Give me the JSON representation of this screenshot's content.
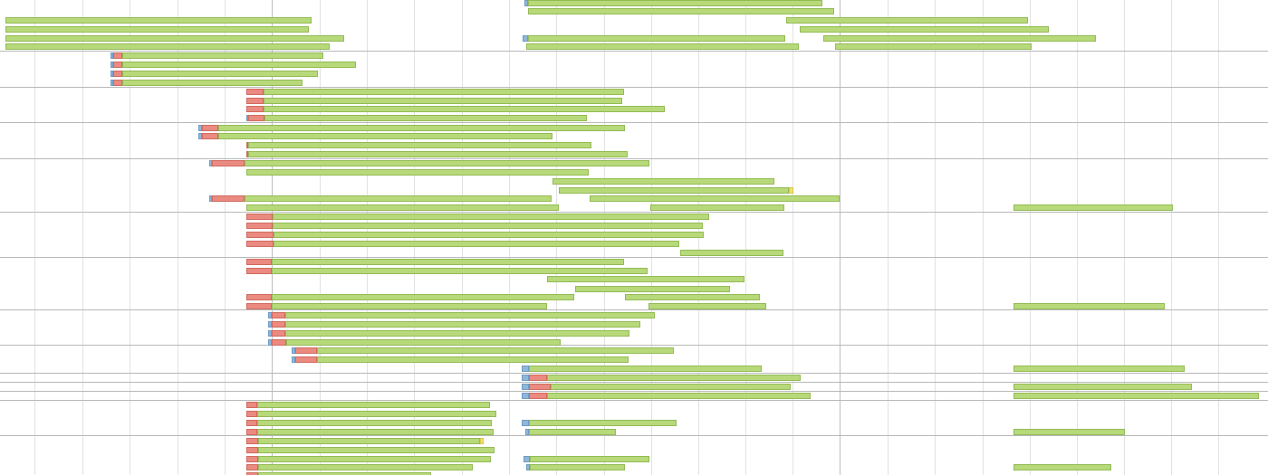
{
  "timeline": {
    "phase_colors": {
      "dns": "#8fb7d9",
      "conn": "#ea8a80",
      "wait": "#f2e26a",
      "recv": "#b7d97a",
      "grid": "#e2e2e2",
      "separator": "#b8b8b8"
    },
    "rows": [
      {
        "segments": [
          [
            "dns",
            579,
            583
          ],
          [
            "recv",
            583,
            908
          ]
        ]
      },
      {
        "segments": [
          [
            "recv",
            583,
            921
          ]
        ]
      },
      {
        "segments": [
          [
            "recv",
            6,
            344
          ],
          [
            "recv",
            868,
            1135
          ]
        ]
      },
      {
        "segments": [
          [
            "recv",
            6,
            341
          ],
          [
            "recv",
            883,
            1158
          ]
        ]
      },
      {
        "segments": [
          [
            "recv",
            6,
            380
          ],
          [
            "dns",
            577,
            583
          ],
          [
            "recv",
            583,
            867
          ],
          [
            "recv",
            909,
            1210
          ]
        ]
      },
      {
        "segments": [
          [
            "recv",
            6,
            364
          ],
          [
            "recv",
            581,
            882
          ],
          [
            "recv",
            922,
            1139
          ]
        ]
      },
      {
        "segments": [
          [
            "dns",
            122,
            125
          ],
          [
            "conn",
            125,
            135
          ],
          [
            "recv",
            135,
            357
          ]
        ]
      },
      {
        "segments": [
          [
            "dns",
            122,
            125
          ],
          [
            "conn",
            125,
            135
          ],
          [
            "recv",
            135,
            393
          ]
        ]
      },
      {
        "segments": [
          [
            "dns",
            122,
            125
          ],
          [
            "conn",
            125,
            135
          ],
          [
            "recv",
            135,
            351
          ]
        ]
      },
      {
        "segments": [
          [
            "dns",
            122,
            125
          ],
          [
            "conn",
            125,
            135
          ],
          [
            "recv",
            135,
            334
          ]
        ]
      },
      {
        "segments": [
          [
            "conn",
            272,
            291
          ],
          [
            "recv",
            291,
            689
          ]
        ]
      },
      {
        "segments": [
          [
            "conn",
            272,
            291
          ],
          [
            "recv",
            291,
            687
          ]
        ]
      },
      {
        "segments": [
          [
            "conn",
            272,
            291
          ],
          [
            "recv",
            291,
            734
          ]
        ]
      },
      {
        "segments": [
          [
            "dns",
            272,
            274
          ],
          [
            "conn",
            274,
            292
          ],
          [
            "recv",
            292,
            648
          ]
        ]
      },
      {
        "segments": [
          [
            "dns",
            219,
            223
          ],
          [
            "conn",
            223,
            241
          ],
          [
            "recv",
            241,
            690
          ]
        ]
      },
      {
        "segments": [
          [
            "dns",
            219,
            223
          ],
          [
            "conn",
            223,
            241
          ],
          [
            "recv",
            241,
            610
          ]
        ]
      },
      {
        "segments": [
          [
            "conn",
            272,
            274
          ],
          [
            "recv",
            274,
            653
          ]
        ]
      },
      {
        "segments": [
          [
            "conn",
            272,
            274
          ],
          [
            "recv",
            274,
            693
          ]
        ]
      },
      {
        "segments": [
          [
            "dns",
            231,
            234
          ],
          [
            "conn",
            234,
            270
          ],
          [
            "recv",
            270,
            717
          ]
        ]
      },
      {
        "segments": [
          [
            "recv",
            272,
            650
          ]
        ]
      },
      {
        "segments": [
          [
            "recv",
            610,
            855
          ]
        ]
      },
      {
        "segments": [
          [
            "recv",
            617,
            871
          ],
          [
            "wait",
            871,
            876
          ]
        ]
      },
      {
        "segments": [
          [
            "dns",
            231,
            234
          ],
          [
            "conn",
            234,
            270
          ],
          [
            "recv",
            270,
            609
          ],
          [
            "recv",
            651,
            927
          ]
        ]
      },
      {
        "segments": [
          [
            "recv",
            272,
            617
          ],
          [
            "recv",
            718,
            866
          ],
          [
            "recv",
            1119,
            1295
          ]
        ]
      },
      {
        "segments": [
          [
            "conn",
            272,
            301
          ],
          [
            "recv",
            301,
            783
          ]
        ]
      },
      {
        "segments": [
          [
            "conn",
            272,
            301
          ],
          [
            "recv",
            301,
            776
          ]
        ]
      },
      {
        "segments": [
          [
            "conn",
            272,
            302
          ],
          [
            "recv",
            302,
            777
          ]
        ]
      },
      {
        "segments": [
          [
            "conn",
            272,
            302
          ],
          [
            "recv",
            302,
            750
          ]
        ]
      },
      {
        "segments": [
          [
            "recv",
            751,
            865
          ]
        ]
      },
      {
        "segments": [
          [
            "conn",
            272,
            300
          ],
          [
            "recv",
            300,
            689
          ]
        ]
      },
      {
        "segments": [
          [
            "conn",
            272,
            300
          ],
          [
            "recv",
            300,
            715
          ]
        ]
      },
      {
        "segments": [
          [
            "recv",
            604,
            822
          ]
        ]
      },
      {
        "segments": [
          [
            "recv",
            635,
            806
          ]
        ]
      },
      {
        "segments": [
          [
            "conn",
            272,
            300
          ],
          [
            "recv",
            300,
            634
          ],
          [
            "recv",
            690,
            839
          ]
        ]
      },
      {
        "segments": [
          [
            "conn",
            272,
            300
          ],
          [
            "recv",
            300,
            604
          ],
          [
            "recv",
            716,
            846
          ],
          [
            "recv",
            1119,
            1286
          ]
        ]
      },
      {
        "segments": [
          [
            "dns",
            296,
            300
          ],
          [
            "conn",
            300,
            315
          ],
          [
            "recv",
            315,
            723
          ]
        ]
      },
      {
        "segments": [
          [
            "dns",
            296,
            300
          ],
          [
            "conn",
            300,
            315
          ],
          [
            "recv",
            315,
            707
          ]
        ]
      },
      {
        "segments": [
          [
            "dns",
            296,
            300
          ],
          [
            "conn",
            300,
            315
          ],
          [
            "recv",
            315,
            695
          ]
        ]
      },
      {
        "segments": [
          [
            "dns",
            296,
            300
          ],
          [
            "conn",
            300,
            316
          ],
          [
            "recv",
            316,
            619
          ]
        ]
      },
      {
        "segments": [
          [
            "dns",
            322,
            326
          ],
          [
            "conn",
            326,
            350
          ],
          [
            "recv",
            350,
            744
          ]
        ]
      },
      {
        "segments": [
          [
            "dns",
            322,
            326
          ],
          [
            "conn",
            326,
            350
          ],
          [
            "recv",
            350,
            694
          ]
        ]
      },
      {
        "segments": [
          [
            "dns",
            576,
            584
          ],
          [
            "recv",
            584,
            841
          ],
          [
            "recv",
            1119,
            1308
          ]
        ]
      },
      {
        "segments": [
          [
            "dns",
            576,
            584
          ],
          [
            "conn",
            584,
            604
          ],
          [
            "recv",
            604,
            884
          ]
        ]
      },
      {
        "segments": [
          [
            "dns",
            576,
            584
          ],
          [
            "conn",
            584,
            608
          ],
          [
            "recv",
            608,
            873
          ],
          [
            "recv",
            1119,
            1316
          ]
        ]
      },
      {
        "segments": [
          [
            "dns",
            576,
            584
          ],
          [
            "conn",
            584,
            604
          ],
          [
            "recv",
            604,
            895
          ],
          [
            "recv",
            1119,
            1390
          ]
        ]
      },
      {
        "segments": [
          [
            "conn",
            272,
            284
          ],
          [
            "recv",
            284,
            541
          ]
        ]
      },
      {
        "segments": [
          [
            "conn",
            272,
            284
          ],
          [
            "recv",
            284,
            548
          ]
        ]
      },
      {
        "segments": [
          [
            "conn",
            272,
            284
          ],
          [
            "recv",
            284,
            543
          ],
          [
            "dns",
            576,
            584
          ],
          [
            "recv",
            584,
            747
          ]
        ]
      },
      {
        "segments": [
          [
            "conn",
            272,
            284
          ],
          [
            "recv",
            284,
            545
          ],
          [
            "dns",
            580,
            584
          ],
          [
            "recv",
            584,
            680
          ],
          [
            "recv",
            1119,
            1242
          ]
        ]
      },
      {
        "segments": [
          [
            "conn",
            272,
            285
          ],
          [
            "recv",
            285,
            530
          ],
          [
            "wait",
            530,
            534
          ]
        ]
      },
      {
        "segments": [
          [
            "conn",
            272,
            285
          ],
          [
            "recv",
            285,
            546
          ]
        ]
      },
      {
        "segments": [
          [
            "conn",
            272,
            285
          ],
          [
            "recv",
            285,
            542
          ],
          [
            "dns",
            578,
            585
          ],
          [
            "recv",
            585,
            717
          ]
        ]
      },
      {
        "segments": [
          [
            "conn",
            272,
            285
          ],
          [
            "recv",
            285,
            522
          ],
          [
            "dns",
            581,
            585
          ],
          [
            "recv",
            585,
            690
          ],
          [
            "recv",
            1119,
            1227
          ]
        ]
      },
      {
        "segments": [
          [
            "conn",
            272,
            285
          ],
          [
            "recv",
            285,
            476
          ]
        ]
      }
    ]
  }
}
